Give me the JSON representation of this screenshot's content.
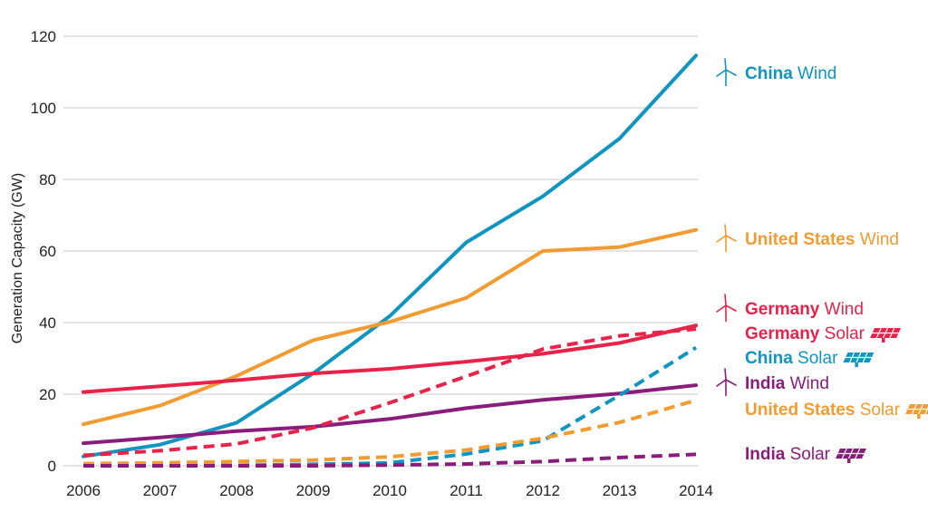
{
  "chart_data": {
    "type": "line",
    "title": "",
    "xlabel": "",
    "ylabel": "Generation Capacity (GW)",
    "x": [
      "2006",
      "2007",
      "2008",
      "2009",
      "2010",
      "2011",
      "2012",
      "2013",
      "2014"
    ],
    "ylim": [
      0,
      120
    ],
    "yticks": [
      0,
      20,
      40,
      60,
      80,
      100,
      120
    ],
    "grid": "horizontal",
    "legend": "right (direct labels)",
    "series": [
      {
        "country": "China",
        "kind": "Wind",
        "icon": "wind-turbine-icon",
        "color": "#0f95bf",
        "dash": false,
        "values": [
          2.6,
          5.9,
          12.0,
          25.8,
          41.8,
          62.4,
          75.3,
          91.4,
          114.6
        ]
      },
      {
        "country": "United States",
        "kind": "Wind",
        "icon": "wind-turbine-icon",
        "color": "#f29b30",
        "dash": false,
        "values": [
          11.6,
          16.8,
          25.1,
          35.1,
          40.2,
          46.9,
          60.0,
          61.1,
          65.9
        ]
      },
      {
        "country": "Germany",
        "kind": "Wind",
        "icon": "wind-turbine-icon",
        "color": "#e8234a",
        "dash": false,
        "values": [
          20.6,
          22.2,
          23.9,
          25.8,
          27.1,
          29.1,
          31.3,
          34.3,
          39.2
        ]
      },
      {
        "country": "Germany",
        "kind": "Solar",
        "icon": "solar-panel-icon",
        "color": "#e8234a",
        "dash": true,
        "values": [
          2.9,
          4.2,
          6.1,
          10.6,
          17.6,
          25.0,
          32.6,
          36.3,
          38.2
        ]
      },
      {
        "country": "China",
        "kind": "Solar",
        "icon": "solar-panel-icon",
        "color": "#0f95bf",
        "dash": true,
        "values": [
          0.1,
          0.1,
          0.1,
          0.4,
          0.8,
          3.3,
          7.0,
          19.7,
          33.0
        ]
      },
      {
        "country": "India",
        "kind": "Wind",
        "icon": "wind-turbine-icon",
        "color": "#8a1c7c",
        "dash": false,
        "values": [
          6.3,
          7.9,
          9.7,
          10.9,
          13.1,
          16.1,
          18.4,
          20.2,
          22.5
        ]
      },
      {
        "country": "United States",
        "kind": "Solar",
        "icon": "solar-panel-icon",
        "color": "#f29b30",
        "dash": true,
        "values": [
          0.6,
          0.8,
          1.2,
          1.6,
          2.5,
          4.4,
          7.7,
          12.1,
          18.3
        ]
      },
      {
        "country": "India",
        "kind": "Solar",
        "icon": "solar-panel-icon",
        "color": "#8a1c7c",
        "dash": true,
        "values": [
          0.0,
          0.0,
          0.0,
          0.0,
          0.2,
          0.5,
          1.2,
          2.3,
          3.2
        ]
      }
    ]
  }
}
